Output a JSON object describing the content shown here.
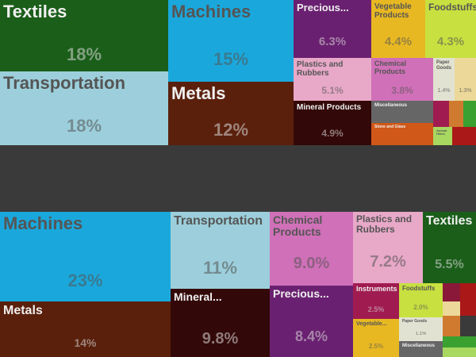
{
  "chart_data": [
    {
      "type": "treemap",
      "title": "",
      "tiles": [
        {
          "name": "Textiles",
          "value_label": "18%",
          "color": "#1a5e1a"
        },
        {
          "name": "Transportation",
          "value_label": "18%",
          "color": "#9ccfdb"
        },
        {
          "name": "Machines",
          "value_label": "15%",
          "color": "#1aa8dc"
        },
        {
          "name": "Metals",
          "value_label": "12%",
          "color": "#5a200c"
        },
        {
          "name": "Precious...",
          "value_label": "6.3%",
          "color": "#6a2070"
        },
        {
          "name": "Vegetable Products",
          "value_label": "4.4%",
          "color": "#e8b822"
        },
        {
          "name": "Foodstuffs",
          "value_label": "4.3%",
          "color": "#c8e040"
        },
        {
          "name": "Plastics and Rubbers",
          "value_label": "5.1%",
          "color": "#e8a8c8"
        },
        {
          "name": "Chemical Products",
          "value_label": "3.8%",
          "color": "#d070b8"
        },
        {
          "name": "Paper Goods",
          "value_label": "1.4%",
          "color": "#e2e2d2"
        },
        {
          "name": "",
          "value_label": "1.3%",
          "color": "#ecd898"
        },
        {
          "name": "Mineral Products",
          "value_label": "4.9%",
          "color": "#330808"
        },
        {
          "name": "Miscellaneous",
          "value_label": "",
          "color": "#666666"
        },
        {
          "name": "Stone and Glass",
          "value_label": "",
          "color": "#d05818"
        },
        {
          "name": "Animal Hides",
          "value_label": "",
          "color": "#a8d860"
        },
        {
          "name": "",
          "value_label": "",
          "color": "#a01c50"
        },
        {
          "name": "",
          "value_label": "",
          "color": "#d07a30"
        },
        {
          "name": "",
          "value_label": "",
          "color": "#3aa030"
        },
        {
          "name": "",
          "value_label": "",
          "color": "#aa1818"
        }
      ]
    },
    {
      "type": "treemap",
      "title": "",
      "tiles": [
        {
          "name": "Machines",
          "value_label": "23%",
          "color": "#1aa8dc"
        },
        {
          "name": "Metals",
          "value_label": "14%",
          "color": "#5a200c"
        },
        {
          "name": "Transportation",
          "value_label": "11%",
          "color": "#9ccfdb"
        },
        {
          "name": "Mineral...",
          "value_label": "9.8%",
          "color": "#330808"
        },
        {
          "name": "Chemical Products",
          "value_label": "9.0%",
          "color": "#d070b8"
        },
        {
          "name": "Precious...",
          "value_label": "8.4%",
          "color": "#6a2070"
        },
        {
          "name": "Plastics and Rubbers",
          "value_label": "7.2%",
          "color": "#e8a8c8"
        },
        {
          "name": "Textiles",
          "value_label": "5.5%",
          "color": "#1a5e1a"
        },
        {
          "name": "Instruments",
          "value_label": "2.5%",
          "color": "#a01c50"
        },
        {
          "name": "Foodstuffs",
          "value_label": "2.0%",
          "color": "#c8e040"
        },
        {
          "name": "Vegetable...",
          "value_label": "2.5%",
          "color": "#e8b822"
        },
        {
          "name": "Paper Goods",
          "value_label": "1.1%",
          "color": "#e2e2d2"
        },
        {
          "name": "Miscellaneous",
          "value_label": "",
          "color": "#666666"
        },
        {
          "name": "",
          "value_label": "",
          "color": "#8a1838"
        },
        {
          "name": "",
          "value_label": "",
          "color": "#ecd898"
        },
        {
          "name": "",
          "value_label": "",
          "color": "#d07a30"
        },
        {
          "name": "",
          "value_label": "",
          "color": "#aa1818"
        },
        {
          "name": "",
          "value_label": "",
          "color": "#3aa030"
        },
        {
          "name": "",
          "value_label": "",
          "color": "#a8d860"
        }
      ]
    }
  ]
}
